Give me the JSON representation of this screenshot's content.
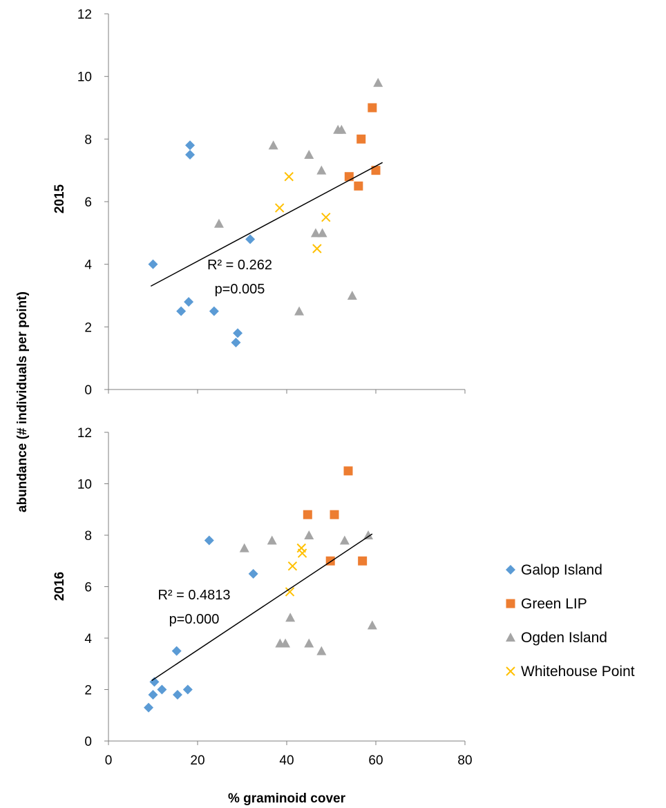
{
  "colors": {
    "galop": "#5B9BD5",
    "green_lip": "#ED7D31",
    "ogden": "#A5A5A5",
    "whitehouse": "#FFC000",
    "axis": "#7f7f7f",
    "trendline": "#000000"
  },
  "shared": {
    "ylabel": "abundance (# individuals per point)",
    "xlabel": "% graminoid cover",
    "x_ticks": [
      "0",
      "20",
      "40",
      "60",
      "80"
    ]
  },
  "legend": [
    {
      "label": "Galop Island",
      "marker": "diamond",
      "color_key": "galop"
    },
    {
      "label": "Green LIP",
      "marker": "square",
      "color_key": "green_lip"
    },
    {
      "label": "Ogden Island",
      "marker": "triangle",
      "color_key": "ogden"
    },
    {
      "label": "Whitehouse Point",
      "marker": "x",
      "color_key": "whitehouse"
    }
  ],
  "chart_data": [
    {
      "type": "scatter",
      "panel_label": "2015",
      "xlim": [
        0,
        80
      ],
      "ylim": [
        0,
        12
      ],
      "y_ticks": [
        "0",
        "2",
        "4",
        "6",
        "8",
        "10",
        "12"
      ],
      "annotation": {
        "r2": "R² = 0.262",
        "p": "p=0.005"
      },
      "trendline": {
        "x": [
          9.5,
          61.5
        ],
        "y": [
          3.3,
          7.25
        ]
      },
      "series": [
        {
          "name": "Galop Island",
          "points": [
            [
              18.3,
              7.8
            ],
            [
              18.3,
              7.5
            ],
            [
              10,
              4
            ],
            [
              31.8,
              4.8
            ],
            [
              18,
              2.8
            ],
            [
              16.3,
              2.5
            ],
            [
              23.7,
              2.5
            ],
            [
              29,
              1.8
            ],
            [
              28.6,
              1.5
            ]
          ]
        },
        {
          "name": "Green LIP",
          "points": [
            [
              59.2,
              9
            ],
            [
              56.7,
              8
            ],
            [
              54,
              6.8
            ],
            [
              60,
              7
            ],
            [
              56.1,
              6.5
            ]
          ]
        },
        {
          "name": "Ogden Island",
          "points": [
            [
              60.5,
              9.8
            ],
            [
              37,
              7.8
            ],
            [
              51.5,
              8.3
            ],
            [
              52.3,
              8.3
            ],
            [
              45,
              7.5
            ],
            [
              47.8,
              7
            ],
            [
              24.8,
              5.3
            ],
            [
              46.5,
              5
            ],
            [
              48,
              5
            ],
            [
              42.8,
              2.5
            ],
            [
              54.7,
              3
            ]
          ]
        },
        {
          "name": "Whitehouse Point",
          "points": [
            [
              40.5,
              6.8
            ],
            [
              38.4,
              5.8
            ],
            [
              48.8,
              5.5
            ],
            [
              46.8,
              4.5
            ]
          ]
        }
      ]
    },
    {
      "type": "scatter",
      "panel_label": "2016",
      "xlim": [
        0,
        80
      ],
      "ylim": [
        0,
        12
      ],
      "y_ticks": [
        "0",
        "2",
        "4",
        "6",
        "8",
        "10",
        "12"
      ],
      "annotation": {
        "r2": "R² = 0.4813",
        "p": "p=0.000"
      },
      "trendline": {
        "x": [
          9.7,
          59.2
        ],
        "y": [
          2.35,
          8.05
        ]
      },
      "series": [
        {
          "name": "Galop Island",
          "points": [
            [
              22.6,
              7.8
            ],
            [
              32.5,
              6.5
            ],
            [
              15.3,
              3.5
            ],
            [
              10.3,
              2.3
            ],
            [
              10,
              1.8
            ],
            [
              12,
              2
            ],
            [
              15.5,
              1.8
            ],
            [
              17.8,
              2
            ],
            [
              9,
              1.3
            ]
          ]
        },
        {
          "name": "Green LIP",
          "points": [
            [
              53.8,
              10.5
            ],
            [
              44.7,
              8.8
            ],
            [
              50.7,
              8.8
            ],
            [
              49.8,
              7
            ],
            [
              57,
              7
            ]
          ]
        },
        {
          "name": "Ogden Island",
          "points": [
            [
              30.5,
              7.5
            ],
            [
              36.7,
              7.8
            ],
            [
              45,
              8
            ],
            [
              53,
              7.8
            ],
            [
              58.3,
              8
            ],
            [
              40.8,
              4.8
            ],
            [
              38.5,
              3.8
            ],
            [
              39.7,
              3.8
            ],
            [
              45,
              3.8
            ],
            [
              47.8,
              3.5
            ],
            [
              59.2,
              4.5
            ]
          ]
        },
        {
          "name": "Whitehouse Point",
          "points": [
            [
              43.3,
              7.5
            ],
            [
              43.5,
              7.3
            ],
            [
              41.3,
              6.8
            ],
            [
              40.7,
              5.8
            ]
          ]
        }
      ]
    }
  ]
}
